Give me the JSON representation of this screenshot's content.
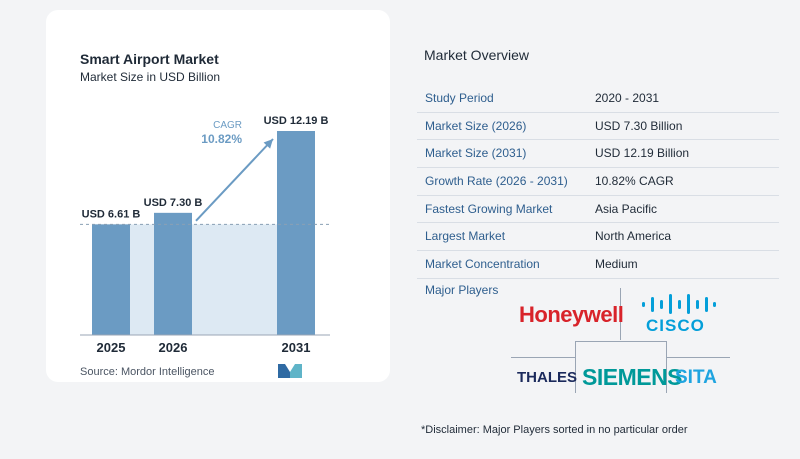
{
  "chart_data": {
    "type": "bar",
    "title": "Smart Airport Market",
    "subtitle": "Market Size in USD Billion",
    "categories": [
      "2025",
      "2026",
      "2031"
    ],
    "values": [
      6.61,
      7.3,
      12.19
    ],
    "value_labels": [
      "USD 6.61 B",
      "USD 7.30 B",
      "USD 12.19 B"
    ],
    "cagr_label": "CAGR",
    "cagr_value": "10.82%",
    "ylim": [
      0,
      12.19
    ],
    "bar_color": "#6b9bc3",
    "arrow_color": "#6b9bc3",
    "shade_color": "#dde9f3"
  },
  "source": "Source:  Mordor Intelligence",
  "overview": {
    "title": "Market Overview",
    "rows": [
      {
        "label": "Study Period",
        "value": "2020 - 2031"
      },
      {
        "label": "Market Size (2026)",
        "value": "USD 7.30 Billion"
      },
      {
        "label": "Market Size (2031)",
        "value": "USD 12.19 Billion"
      },
      {
        "label": "Growth Rate (2026 - 2031)",
        "value": "10.82% CAGR"
      },
      {
        "label": "Fastest Growing Market",
        "value": "Asia Pacific"
      },
      {
        "label": "Largest Market",
        "value": "North America"
      },
      {
        "label": "Market Concentration",
        "value": "Medium"
      }
    ],
    "players_label": "Major Players"
  },
  "players": {
    "honeywell": "Honeywell",
    "cisco": "CISCO",
    "thales": "THALES",
    "siemens": "SIEMENS",
    "sita": "SITA"
  },
  "disclaimer": "*Disclaimer: Major Players sorted in no particular order"
}
